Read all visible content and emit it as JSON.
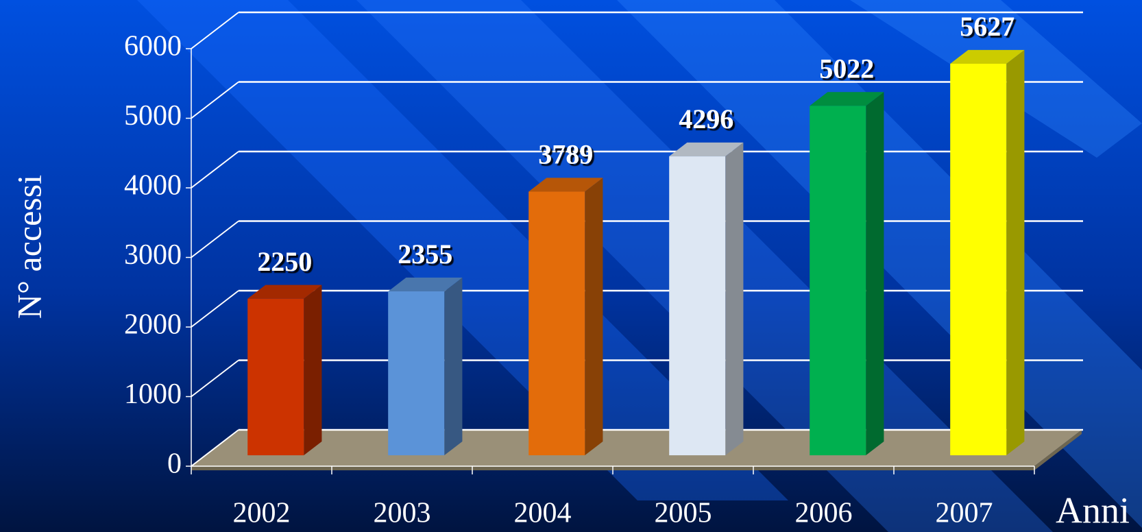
{
  "chart_data": {
    "type": "bar3d",
    "categories": [
      "2002",
      "2003",
      "2004",
      "2005",
      "2006",
      "2007"
    ],
    "values": [
      2250,
      2355,
      3789,
      4296,
      5022,
      5627
    ],
    "colors": [
      "#cc3300",
      "#5b93d8",
      "#e36c0a",
      "#dde7f3",
      "#00b04f",
      "#ffff00"
    ],
    "ylabel": "N° accessi",
    "xlabel": "Anni",
    "ylim": [
      0,
      6000
    ],
    "yticks": [
      0,
      1000,
      2000,
      3000,
      4000,
      5000,
      6000
    ],
    "grid": true
  }
}
